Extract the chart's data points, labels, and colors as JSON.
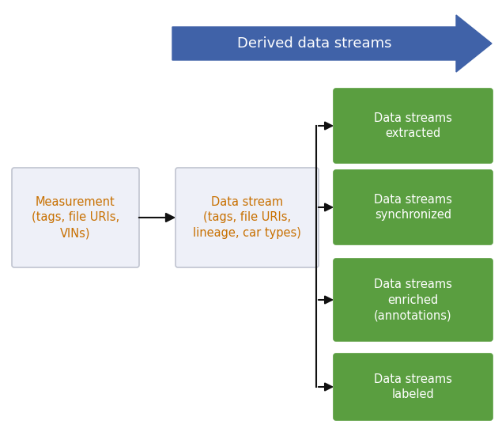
{
  "bg_color": "#ffffff",
  "arrow_banner_color": "#4062a8",
  "arrow_banner_text": "Derived data streams",
  "arrow_banner_text_color": "#ffffff",
  "box_left_text": "Measurement\n(tags, file URIs,\nVINs)",
  "box_middle_text": "Data stream\n(tags, file URIs,\nlineage, car types)",
  "box_left_facecolor": "#eef0f8",
  "box_left_edgecolor": "#c0c4d0",
  "box_middle_facecolor": "#eef0f8",
  "box_middle_edgecolor": "#c0c4d0",
  "box_text_color": "#c87000",
  "green_boxes": [
    "Data streams\nextracted",
    "Data streams\nsynchronized",
    "Data streams\nenriched\n(annotations)",
    "Data streams\nlabeled"
  ],
  "green_box_color": "#5a9e40",
  "green_box_text_color": "#ffffff",
  "arrow_color": "#111111",
  "figsize": [
    6.35,
    5.65
  ],
  "dpi": 100
}
